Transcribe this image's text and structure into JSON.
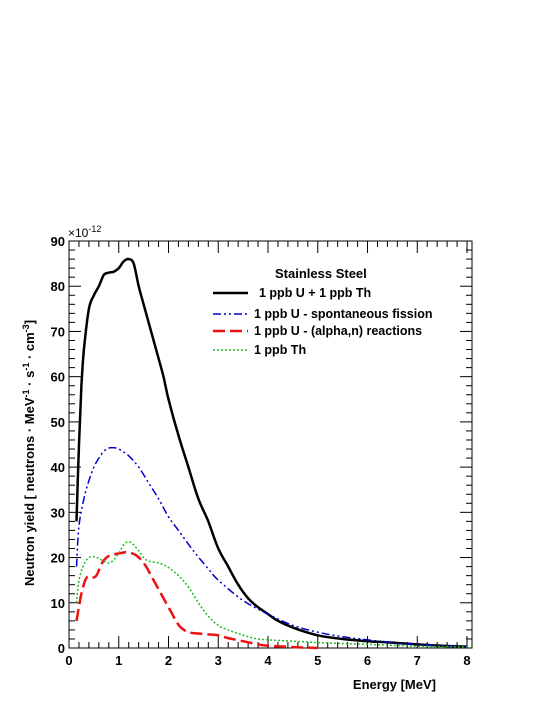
{
  "chart_data": {
    "type": "line",
    "title": "",
    "xlabel": "Energy [MeV]",
    "ylabel": "Neutron yield  [ neutrons · MeV",
    "ylabel_parts": [
      "Neutron yield  [ neutrons · MeV",
      "-1",
      " · s",
      "-1",
      " · cm",
      "-3",
      "]"
    ],
    "y_multiplier": "×10",
    "y_multiplier_exp": "-12",
    "xlim": [
      0,
      8.1
    ],
    "ylim": [
      0,
      90
    ],
    "x_ticks": [
      "0",
      "1",
      "2",
      "3",
      "4",
      "5",
      "6",
      "7",
      "8"
    ],
    "y_ticks": [
      "0",
      "10",
      "20",
      "30",
      "40",
      "50",
      "60",
      "70",
      "80",
      "90"
    ],
    "grid": false,
    "legend": {
      "title": "Stainless Steel",
      "placement": "top-right",
      "entries": [
        {
          "label": "1 ppb U + 1 ppb Th",
          "color": "#000000",
          "style": "solid"
        },
        {
          "label": "1 ppb U - spontaneous fission",
          "color": "#0000cc",
          "style": "dashdotdot"
        },
        {
          "label": "1 ppb U - (alpha,n) reactions",
          "color": "#ee1111",
          "style": "longdash"
        },
        {
          "label": "1 ppb Th",
          "color": "#22bb22",
          "style": "dotted"
        }
      ]
    },
    "series": [
      {
        "name": "1 ppb U + 1 ppb Th",
        "color": "#000000",
        "style": "solid",
        "x": [
          0.15,
          0.2,
          0.25,
          0.3,
          0.4,
          0.5,
          0.6,
          0.7,
          0.8,
          0.9,
          1.0,
          1.1,
          1.2,
          1.3,
          1.4,
          1.5,
          1.6,
          1.7,
          1.8,
          1.9,
          2.0,
          2.2,
          2.4,
          2.6,
          2.8,
          3.0,
          3.2,
          3.4,
          3.6,
          3.8,
          4.0,
          4.2,
          4.5,
          5.0,
          5.5,
          6.0,
          6.5,
          7.0,
          7.5,
          8.0
        ],
        "y": [
          28,
          45,
          58,
          66,
          75,
          78,
          80,
          82.5,
          83,
          83.2,
          84,
          85.5,
          86,
          85,
          80,
          76,
          72,
          68,
          64,
          60,
          55,
          47,
          40,
          33,
          28,
          22,
          18,
          14,
          11,
          9,
          7.5,
          6,
          4.5,
          2.8,
          2,
          1.5,
          1.2,
          0.8,
          0.5,
          0.3
        ]
      },
      {
        "name": "1 ppb U - spontaneous fission",
        "color": "#0000cc",
        "style": "dashdotdot",
        "x": [
          0.15,
          0.2,
          0.3,
          0.4,
          0.5,
          0.6,
          0.7,
          0.8,
          0.9,
          1.0,
          1.2,
          1.4,
          1.6,
          1.8,
          2.0,
          2.2,
          2.5,
          2.8,
          3.0,
          3.5,
          4.0,
          4.5,
          5.0,
          5.5,
          6.0,
          6.5,
          7.0,
          7.5,
          8.0
        ],
        "y": [
          18,
          27,
          33,
          37,
          40,
          42,
          43.5,
          44.2,
          44.3,
          44,
          42.5,
          40,
          36.5,
          33,
          29,
          26,
          21.5,
          17.5,
          15,
          10.5,
          7.5,
          5,
          3.5,
          2.5,
          1.8,
          1.2,
          0.8,
          0.5,
          0.3
        ]
      },
      {
        "name": "1 ppb U - (alpha,n) reactions",
        "color": "#ee1111",
        "style": "longdash",
        "x": [
          0.15,
          0.25,
          0.35,
          0.45,
          0.55,
          0.65,
          0.75,
          0.85,
          0.95,
          1.05,
          1.15,
          1.25,
          1.35,
          1.45,
          1.55,
          1.65,
          1.75,
          1.85,
          1.95,
          2.05,
          2.15,
          2.25,
          2.4,
          2.6,
          2.8,
          3.0,
          3.2,
          3.5,
          3.8,
          4.0,
          4.5,
          5.0
        ],
        "y": [
          6,
          12,
          15.5,
          15.5,
          16,
          18.5,
          20,
          20.5,
          20.8,
          21,
          21.2,
          21,
          20.5,
          19.5,
          18,
          16,
          14,
          12,
          10,
          8,
          6,
          4.5,
          3.5,
          3.2,
          3.0,
          2.8,
          2.2,
          1.5,
          0.8,
          0.5,
          0.2,
          0
        ]
      },
      {
        "name": "1 ppb Th",
        "color": "#22bb22",
        "style": "dotted",
        "x": [
          0.15,
          0.2,
          0.3,
          0.4,
          0.5,
          0.6,
          0.7,
          0.8,
          0.9,
          1.0,
          1.1,
          1.2,
          1.3,
          1.4,
          1.5,
          1.6,
          1.8,
          2.0,
          2.2,
          2.4,
          2.6,
          2.8,
          3.0,
          3.2,
          3.4,
          3.6,
          3.8,
          4.0,
          4.5,
          5.0,
          5.5,
          6.0,
          6.5,
          7.0,
          7.5,
          8.0
        ],
        "y": [
          10,
          15,
          18.5,
          20,
          20.2,
          19.8,
          19.2,
          18.8,
          19.5,
          21,
          22.8,
          23.5,
          22.8,
          21.5,
          20,
          19.2,
          18.8,
          17.8,
          16,
          13.5,
          10,
          7,
          5,
          4,
          3.2,
          2.5,
          2,
          1.8,
          1.5,
          1.2,
          1,
          0.8,
          0.6,
          0.4,
          0.3,
          0.2
        ]
      }
    ]
  }
}
